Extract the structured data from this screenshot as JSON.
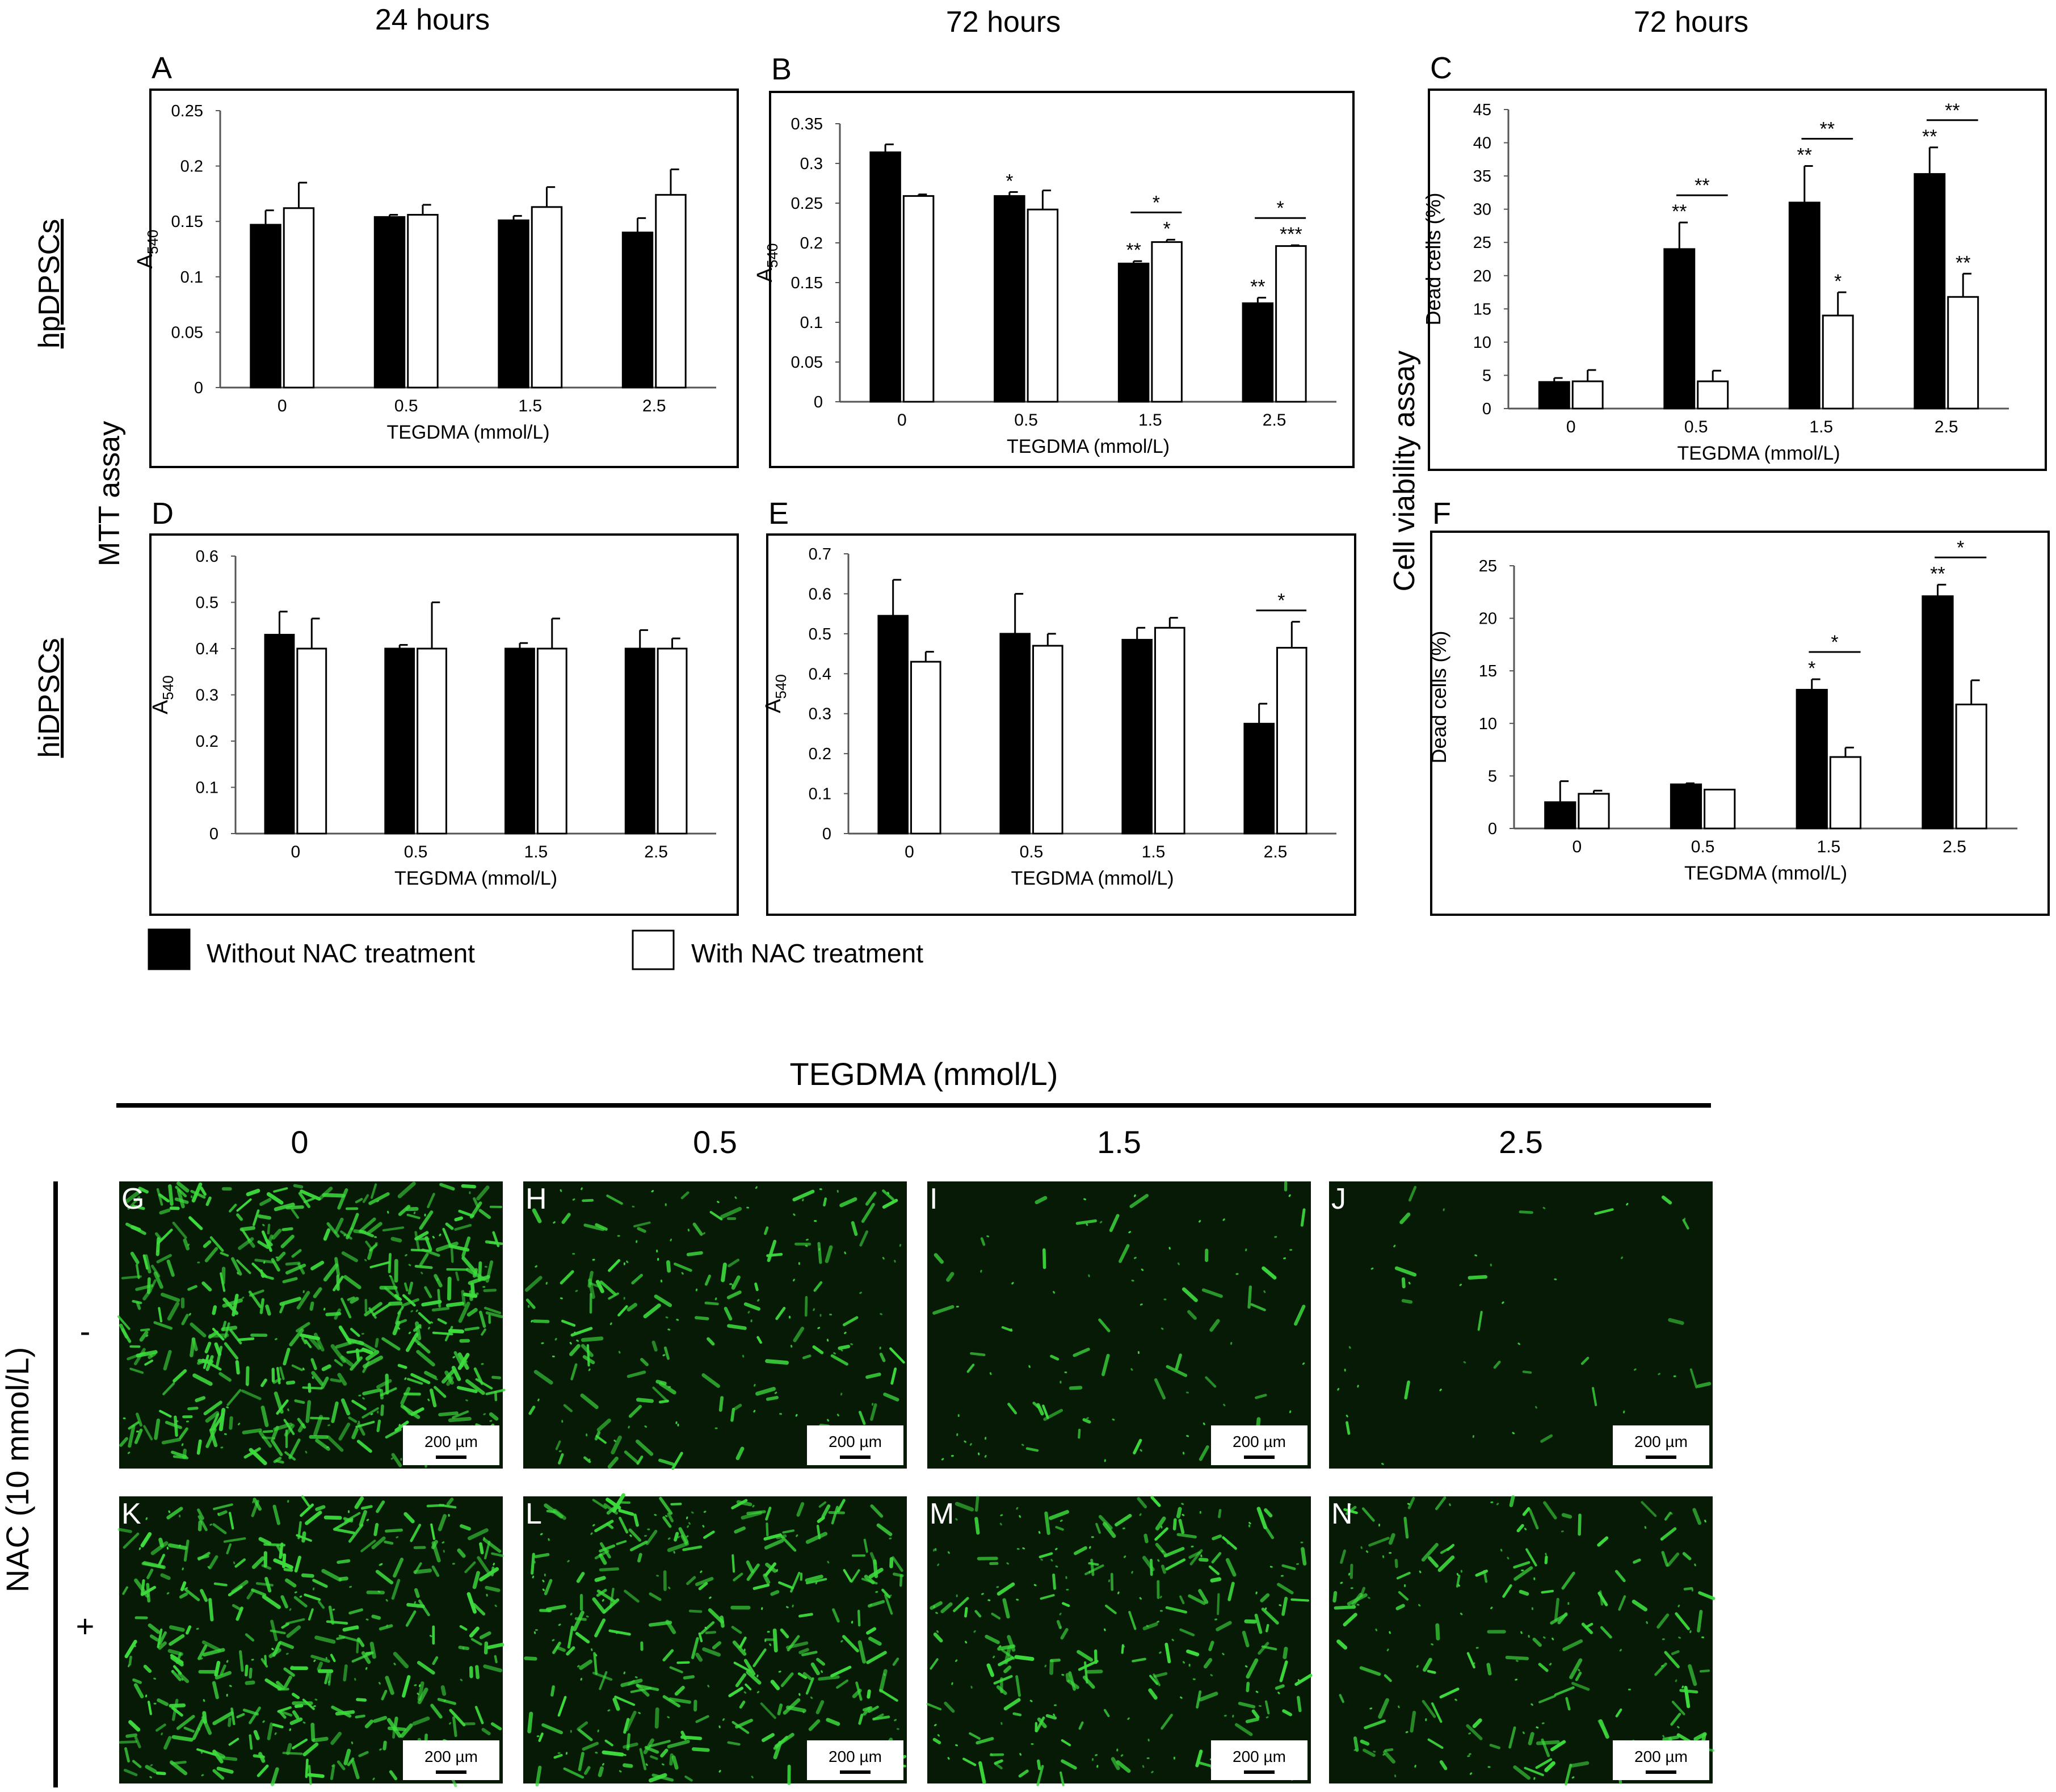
{
  "figure": {
    "col_titles": [
      "24 hours",
      "72 hours",
      "72 hours"
    ],
    "row_labels": [
      "hpDPSCs",
      "hiDPSCs"
    ],
    "side_labels": {
      "mtt": "MTT assay",
      "viability": "Cell viability assay"
    },
    "legend": [
      {
        "label": "Without NAC treatment",
        "color": "#000000"
      },
      {
        "label": "With NAC treatment",
        "color": "#ffffff"
      }
    ]
  },
  "chart_data": [
    {
      "panel": "A",
      "type": "bar",
      "xlabel": "TEGDMA (mmol/L)",
      "ylabel_main": "A",
      "ylabel_sub": "540",
      "categories": [
        "0",
        "0.5",
        "1.5",
        "2.5"
      ],
      "ylim": [
        0,
        0.25
      ],
      "yticks": [
        "0",
        "0.05",
        "0.1",
        "0.15",
        "0.2",
        "0.25"
      ],
      "series": [
        {
          "name": "Without NAC treatment",
          "values": [
            0.147,
            0.154,
            0.151,
            0.14
          ],
          "errors": [
            0.013,
            0.002,
            0.004,
            0.013
          ]
        },
        {
          "name": "With NAC treatment",
          "values": [
            0.162,
            0.156,
            0.163,
            0.174
          ],
          "errors": [
            0.023,
            0.009,
            0.018,
            0.023
          ]
        }
      ],
      "significance": []
    },
    {
      "panel": "B",
      "type": "bar",
      "xlabel": "TEGDMA (mmol/L)",
      "ylabel_main": "A",
      "ylabel_sub": "540",
      "categories": [
        "0",
        "0.5",
        "1.5",
        "2.5"
      ],
      "ylim": [
        0,
        0.35
      ],
      "yticks": [
        "0",
        "0.05",
        "0.1",
        "0.15",
        "0.2",
        "0.25",
        "0.3",
        "0.35"
      ],
      "series": [
        {
          "name": "Without NAC treatment",
          "values": [
            0.314,
            0.259,
            0.174,
            0.124
          ],
          "errors": [
            0.01,
            0.005,
            0.003,
            0.007
          ],
          "stars": [
            "",
            "*",
            "**",
            "**"
          ]
        },
        {
          "name": "With NAC treatment",
          "values": [
            0.259,
            0.242,
            0.201,
            0.196
          ],
          "errors": [
            0.002,
            0.024,
            0.003,
            0.001
          ],
          "stars": [
            "",
            "",
            "*",
            "***"
          ]
        }
      ],
      "significance": [
        {
          "group": 2,
          "label": "*"
        },
        {
          "group": 3,
          "label": "*"
        }
      ]
    },
    {
      "panel": "C",
      "type": "bar",
      "xlabel": "TEGDMA (mmol/L)",
      "ylabel": "Dead cells (%)",
      "categories": [
        "0",
        "0.5",
        "1.5",
        "2.5"
      ],
      "ylim": [
        0,
        45
      ],
      "yticks": [
        "0",
        "5",
        "10",
        "15",
        "20",
        "25",
        "30",
        "35",
        "40",
        "45"
      ],
      "series": [
        {
          "name": "Without NAC treatment",
          "values": [
            4,
            24,
            31,
            35.3
          ],
          "errors": [
            0.6,
            4,
            5.5,
            4
          ],
          "stars": [
            "",
            "**",
            "**",
            "**"
          ]
        },
        {
          "name": "With NAC treatment",
          "values": [
            4.1,
            4.1,
            14,
            16.8
          ],
          "errors": [
            1.7,
            1.6,
            3.5,
            3.5
          ],
          "stars": [
            "",
            "",
            "*",
            "**"
          ]
        }
      ],
      "significance": [
        {
          "group": 1,
          "label": "**"
        },
        {
          "group": 2,
          "label": "**"
        },
        {
          "group": 3,
          "label": "**"
        }
      ]
    },
    {
      "panel": "D",
      "type": "bar",
      "xlabel": "TEGDMA (mmol/L)",
      "ylabel_main": "A",
      "ylabel_sub": "540",
      "categories": [
        "0",
        "0.5",
        "1.5",
        "2.5"
      ],
      "ylim": [
        0,
        0.6
      ],
      "yticks": [
        "0",
        "0.1",
        "0.2",
        "0.3",
        "0.4",
        "0.5",
        "0.6"
      ],
      "series": [
        {
          "name": "Without NAC treatment",
          "values": [
            0.43,
            0.4,
            0.4,
            0.4
          ],
          "errors": [
            0.05,
            0.008,
            0.012,
            0.04
          ]
        },
        {
          "name": "With NAC treatment",
          "values": [
            0.4,
            0.4,
            0.4,
            0.4
          ],
          "errors": [
            0.065,
            0.1,
            0.065,
            0.022
          ]
        }
      ],
      "significance": []
    },
    {
      "panel": "E",
      "type": "bar",
      "xlabel": "TEGDMA (mmol/L)",
      "ylabel_main": "A",
      "ylabel_sub": "540",
      "categories": [
        "0",
        "0.5",
        "1.5",
        "2.5"
      ],
      "ylim": [
        0,
        0.7
      ],
      "yticks": [
        "0",
        "0.1",
        "0.2",
        "0.3",
        "0.4",
        "0.5",
        "0.6",
        "0.7"
      ],
      "series": [
        {
          "name": "Without NAC treatment",
          "values": [
            0.545,
            0.5,
            0.485,
            0.275
          ],
          "errors": [
            0.09,
            0.1,
            0.03,
            0.05
          ]
        },
        {
          "name": "With NAC treatment",
          "values": [
            0.43,
            0.47,
            0.515,
            0.465
          ],
          "errors": [
            0.025,
            0.03,
            0.025,
            0.065
          ]
        }
      ],
      "significance": [
        {
          "group": 3,
          "label": "*"
        }
      ]
    },
    {
      "panel": "F",
      "type": "bar",
      "xlabel": "TEGDMA (mmol/L)",
      "ylabel": "Dead cells (%)",
      "categories": [
        "0",
        "0.5",
        "1.5",
        "2.5"
      ],
      "ylim": [
        0,
        25
      ],
      "yticks": [
        "0",
        "5",
        "10",
        "15",
        "20",
        "25"
      ],
      "series": [
        {
          "name": "Without NAC treatment",
          "values": [
            2.5,
            4.2,
            13.2,
            22.1
          ],
          "errors": [
            2,
            0.1,
            1,
            1.1
          ],
          "stars": [
            "",
            "",
            "*",
            "**"
          ]
        },
        {
          "name": "With NAC treatment",
          "values": [
            3.3,
            3.7,
            6.8,
            11.8
          ],
          "errors": [
            0.3,
            0,
            0.9,
            2.3
          ],
          "stars": [
            "",
            "",
            "",
            ""
          ]
        }
      ],
      "significance": [
        {
          "group": 2,
          "label": "*"
        },
        {
          "group": 3,
          "label": "*"
        }
      ]
    }
  ],
  "micrographs": {
    "header": "TEGDMA (mmol/L)",
    "columns": [
      "0",
      "0.5",
      "1.5",
      "2.5"
    ],
    "row_header": "NAC (10 mmol/L)",
    "rows": [
      "-",
      "+"
    ],
    "letters": [
      [
        "G",
        "H",
        "I",
        "J"
      ],
      [
        "K",
        "L",
        "M",
        "N"
      ]
    ],
    "scale_bar": "200 µm",
    "cell_density": [
      [
        1.0,
        0.45,
        0.2,
        0.1
      ],
      [
        0.8,
        0.7,
        0.55,
        0.45
      ]
    ],
    "cell_color": "#3ddc3d",
    "background": "#061a06"
  }
}
